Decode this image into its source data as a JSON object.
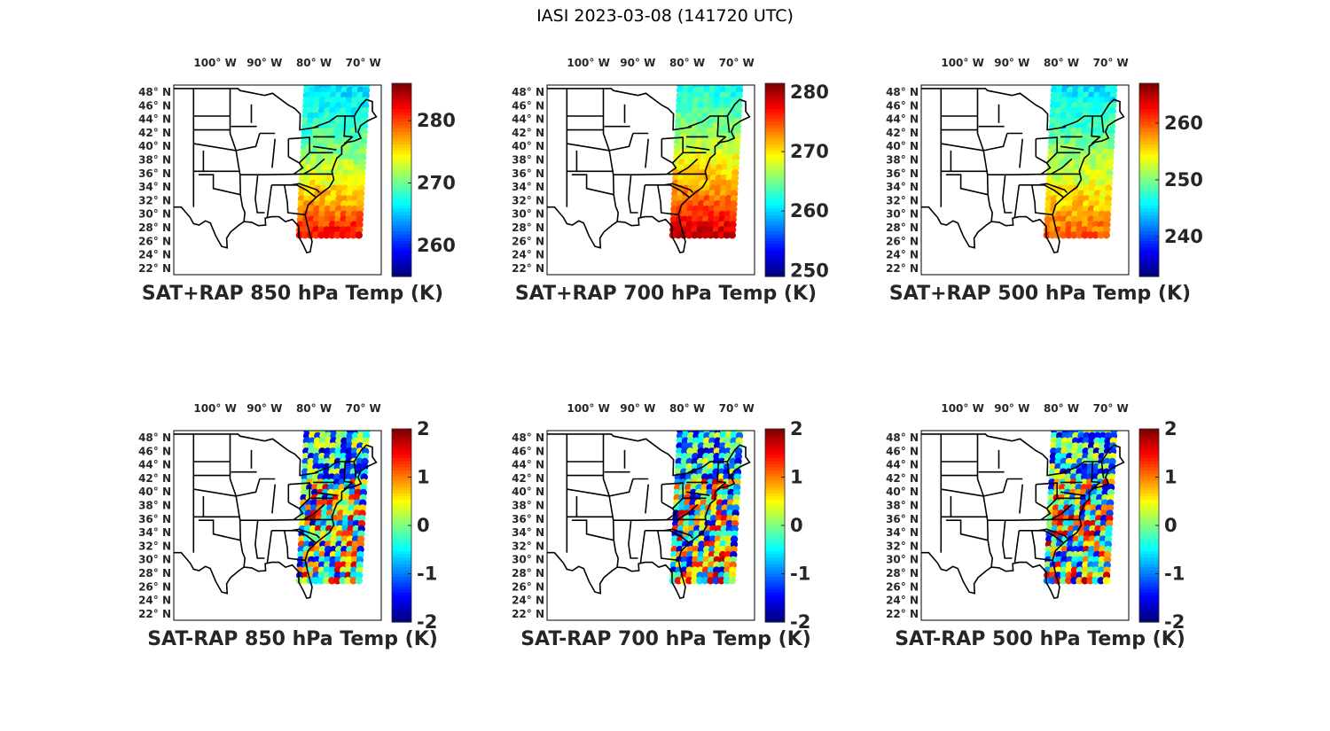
{
  "figure_title": "IASI 2023-03-08 (141720 UTC)",
  "lon_ticks": [
    "100° W",
    "90° W",
    "80° W",
    "70° W"
  ],
  "lat_ticks": [
    "48° N",
    "46° N",
    "44° N",
    "42° N",
    "40° N",
    "38° N",
    "36° N",
    "34° N",
    "32° N",
    "30° N",
    "28° N",
    "26° N",
    "24° N",
    "22° N"
  ],
  "panels": [
    {
      "id": "p1",
      "title": "SAT+RAP 850 hPa Temp (K)",
      "kind": "abs",
      "cb_min": 255,
      "cb_max": 286,
      "cb_ticks": [
        "260",
        "270",
        "280"
      ],
      "cb_values": [
        260,
        270,
        280
      ]
    },
    {
      "id": "p2",
      "title": "SAT+RAP 700 hPa Temp (K)",
      "kind": "abs",
      "cb_min": 249,
      "cb_max": 281.5,
      "cb_ticks": [
        "250",
        "260",
        "270",
        "280"
      ],
      "cb_values": [
        250,
        260,
        270,
        280
      ]
    },
    {
      "id": "p3",
      "title": "SAT+RAP 500 hPa Temp (K)",
      "kind": "abs",
      "cb_min": 233,
      "cb_max": 267,
      "cb_ticks": [
        "240",
        "250",
        "260"
      ],
      "cb_values": [
        240,
        250,
        260
      ]
    },
    {
      "id": "p4",
      "title": "SAT-RAP 850 hPa Temp (K)",
      "kind": "diff",
      "cb_min": -2,
      "cb_max": 2,
      "cb_ticks": [
        "-2",
        "-1",
        "0",
        "1",
        "2"
      ],
      "cb_values": [
        -2,
        -1,
        0,
        1,
        2
      ]
    },
    {
      "id": "p5",
      "title": "SAT-RAP 700 hPa Temp (K)",
      "kind": "diff",
      "cb_min": -2,
      "cb_max": 2,
      "cb_ticks": [
        "-2",
        "-1",
        "0",
        "1",
        "2"
      ],
      "cb_values": [
        -2,
        -1,
        0,
        1,
        2
      ]
    },
    {
      "id": "p6",
      "title": "SAT-RAP 500 hPa Temp (K)",
      "kind": "diff",
      "cb_min": -2,
      "cb_max": 2,
      "cb_ticks": [
        "-2",
        "-1",
        "0",
        "1",
        "2"
      ],
      "cb_values": [
        -2,
        -1,
        0,
        1,
        2
      ]
    }
  ],
  "colors": {
    "jet_low": "#00008f",
    "jet_mid": "#7fff7f",
    "jet_high": "#800000",
    "outline": "#000000"
  }
}
